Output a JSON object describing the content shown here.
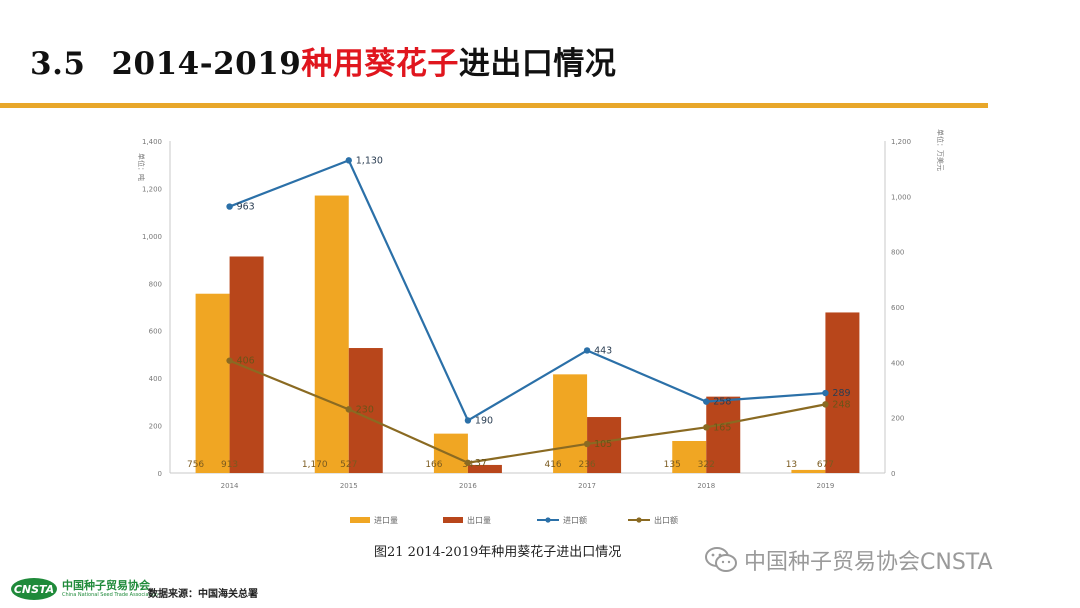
{
  "slide": {
    "section": "3.5",
    "title_lead": "2014-2019",
    "title_highlight": "种用葵花子",
    "title_tail": "进出口情况"
  },
  "chart_data": {
    "type": "bar+line",
    "categories": [
      "2014",
      "2015",
      "2016",
      "2017",
      "2018",
      "2019"
    ],
    "left_axis": {
      "label": "单位：吨",
      "min": 0,
      "max": 1400,
      "step": 200,
      "ticks": [
        "0",
        "200",
        "400",
        "600",
        "800",
        "1,000",
        "1,200",
        "1,400"
      ]
    },
    "right_axis": {
      "label": "单位：万美元",
      "min": 0,
      "max": 1200,
      "step": 200,
      "ticks": [
        "0",
        "200",
        "400",
        "600",
        "800",
        "1,000",
        "1,200"
      ]
    },
    "series": [
      {
        "name": "进口量",
        "kind": "bar",
        "axis": "left",
        "color": "#f0a623",
        "values": [
          756,
          1170,
          166,
          416,
          135,
          13
        ],
        "labels": [
          "756",
          "1,170",
          "166",
          "416",
          "135",
          "13"
        ]
      },
      {
        "name": "出口量",
        "kind": "bar",
        "axis": "left",
        "color": "#b8461b",
        "values": [
          913,
          527,
          34,
          236,
          322,
          677
        ],
        "labels": [
          "913",
          "527",
          "34",
          "236",
          "322",
          "677"
        ]
      },
      {
        "name": "进口额",
        "kind": "line",
        "axis": "right",
        "color": "#2b70a8",
        "values": [
          963,
          1130,
          190,
          443,
          258,
          289
        ],
        "labels": [
          "963",
          "1,130",
          "190",
          "443",
          "258",
          "289"
        ]
      },
      {
        "name": "出口额",
        "kind": "line",
        "axis": "right",
        "color": "#8a6a22",
        "values": [
          406,
          230,
          37,
          105,
          165,
          248
        ],
        "labels": [
          "406",
          "230",
          "37",
          "105",
          "165",
          "248"
        ]
      }
    ]
  },
  "caption": "图21   2014-2019年种用葵花子进出口情况",
  "watermark": "中国种子贸易协会CNSTA",
  "logo": {
    "badge": "CNSTA",
    "name_cn": "中国种子贸易协会",
    "name_en": "China National Seed Trade Association"
  },
  "source": "数据来源：中国海关总署"
}
